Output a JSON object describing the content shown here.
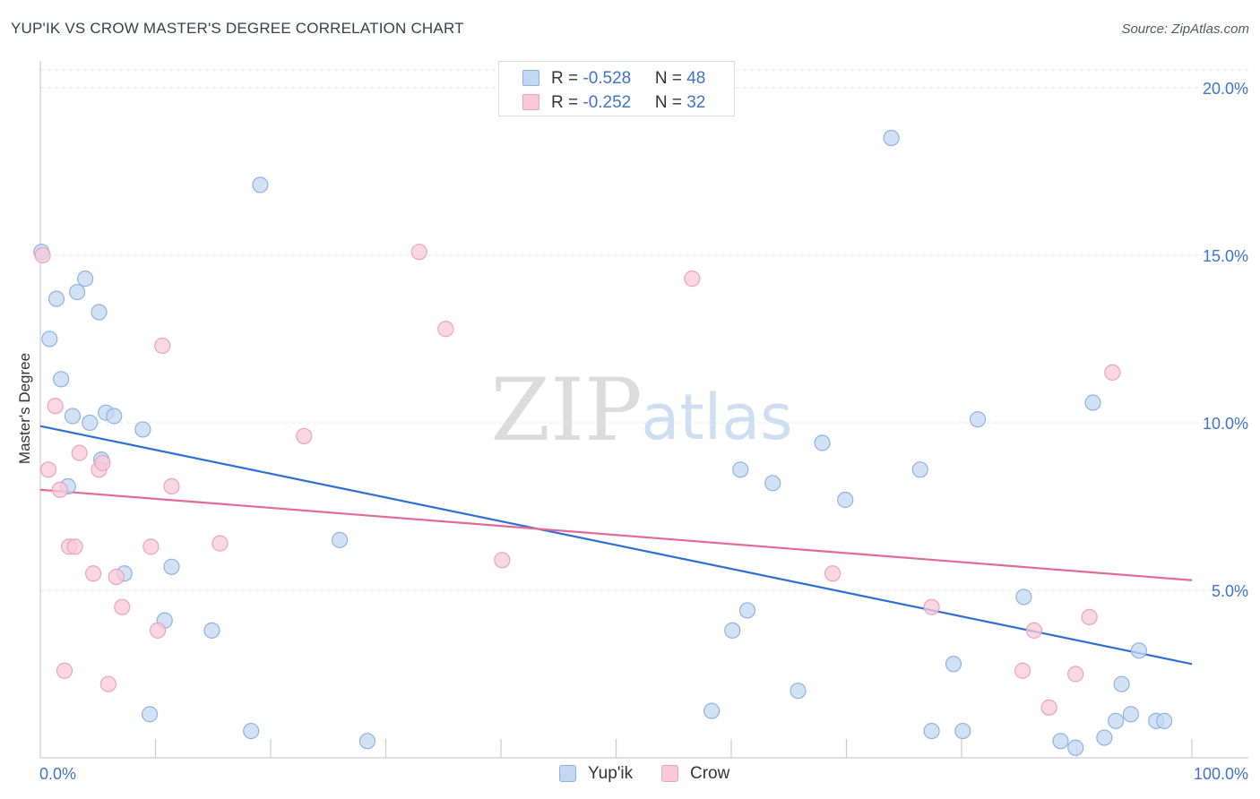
{
  "title": "YUP'IK VS CROW MASTER'S DEGREE CORRELATION CHART",
  "source": "Source: ZipAtlas.com",
  "watermark": {
    "zip": "ZIP",
    "atlas": "atlas"
  },
  "legend": {
    "rows": [
      {
        "r_label": "R = ",
        "r_value": "-0.528",
        "n_label": "N = ",
        "n_value": "48"
      },
      {
        "r_label": "R = ",
        "r_value": "-0.252",
        "n_label": "N = ",
        "n_value": "32"
      }
    ]
  },
  "bottom_legend": {
    "series1": "Yup'ik",
    "series2": "Crow"
  },
  "colors": {
    "blue_fill": "#c4d7f2",
    "blue_stroke": "#8fb2e3",
    "blue_line": "#2f6fd3",
    "pink_fill": "#f8c9d8",
    "pink_stroke": "#eba3bb",
    "pink_line": "#e36a97",
    "tick_label": "#3f74c8"
  },
  "chart_data": {
    "type": "scatter",
    "title": "YUP'IK VS CROW MASTER'S DEGREE CORRELATION CHART",
    "xlabel": "",
    "ylabel": "Master's Degree",
    "xlim": [
      0,
      100
    ],
    "ylim": [
      0,
      20.8
    ],
    "x_tick_labels": [
      "0.0%",
      "100.0%"
    ],
    "y_ticks": [
      5,
      10,
      15,
      20
    ],
    "y_tick_labels": [
      "5.0%",
      "10.0%",
      "15.0%",
      "20.0%"
    ],
    "grid": true,
    "legend_position": "top-center",
    "series": [
      {
        "name": "Yup'ik",
        "r": -0.528,
        "n": 48,
        "trend": {
          "x": [
            0,
            100
          ],
          "y": [
            9.9,
            2.8
          ]
        },
        "points": [
          {
            "x": 0.1,
            "y": 15.1
          },
          {
            "x": 0.8,
            "y": 12.5
          },
          {
            "x": 1.4,
            "y": 13.7
          },
          {
            "x": 1.8,
            "y": 11.3
          },
          {
            "x": 2.4,
            "y": 8.1
          },
          {
            "x": 2.8,
            "y": 10.2
          },
          {
            "x": 3.2,
            "y": 13.9
          },
          {
            "x": 3.9,
            "y": 14.3
          },
          {
            "x": 4.3,
            "y": 10.0
          },
          {
            "x": 5.1,
            "y": 13.3
          },
          {
            "x": 5.3,
            "y": 8.9
          },
          {
            "x": 5.7,
            "y": 10.3
          },
          {
            "x": 6.4,
            "y": 10.2
          },
          {
            "x": 7.3,
            "y": 5.5
          },
          {
            "x": 8.9,
            "y": 9.8
          },
          {
            "x": 9.5,
            "y": 1.3
          },
          {
            "x": 10.8,
            "y": 4.1
          },
          {
            "x": 11.4,
            "y": 5.7
          },
          {
            "x": 19.1,
            "y": 17.1
          },
          {
            "x": 14.9,
            "y": 3.8
          },
          {
            "x": 18.3,
            "y": 0.8
          },
          {
            "x": 26.0,
            "y": 6.5
          },
          {
            "x": 28.4,
            "y": 0.5
          },
          {
            "x": 73.9,
            "y": 18.5
          },
          {
            "x": 60.8,
            "y": 8.6
          },
          {
            "x": 63.6,
            "y": 8.2
          },
          {
            "x": 67.9,
            "y": 9.4
          },
          {
            "x": 69.9,
            "y": 7.7
          },
          {
            "x": 76.4,
            "y": 8.6
          },
          {
            "x": 81.4,
            "y": 10.1
          },
          {
            "x": 91.4,
            "y": 10.6
          },
          {
            "x": 61.4,
            "y": 4.4
          },
          {
            "x": 60.1,
            "y": 3.8
          },
          {
            "x": 58.3,
            "y": 1.4
          },
          {
            "x": 65.8,
            "y": 2.0
          },
          {
            "x": 79.3,
            "y": 2.8
          },
          {
            "x": 77.4,
            "y": 0.8
          },
          {
            "x": 80.1,
            "y": 0.8
          },
          {
            "x": 85.4,
            "y": 4.8
          },
          {
            "x": 88.6,
            "y": 0.5
          },
          {
            "x": 89.9,
            "y": 0.3
          },
          {
            "x": 93.9,
            "y": 2.2
          },
          {
            "x": 95.4,
            "y": 3.2
          },
          {
            "x": 93.4,
            "y": 1.1
          },
          {
            "x": 94.7,
            "y": 1.3
          },
          {
            "x": 96.9,
            "y": 1.1
          },
          {
            "x": 97.6,
            "y": 1.1
          },
          {
            "x": 92.4,
            "y": 0.6
          }
        ]
      },
      {
        "name": "Crow",
        "r": -0.252,
        "n": 32,
        "trend": {
          "x": [
            0,
            100
          ],
          "y": [
            8.0,
            5.3
          ]
        },
        "points": [
          {
            "x": 0.2,
            "y": 15.0
          },
          {
            "x": 0.7,
            "y": 8.6
          },
          {
            "x": 1.3,
            "y": 10.5
          },
          {
            "x": 1.7,
            "y": 8.0
          },
          {
            "x": 2.1,
            "y": 2.6
          },
          {
            "x": 2.5,
            "y": 6.3
          },
          {
            "x": 3.0,
            "y": 6.3
          },
          {
            "x": 3.4,
            "y": 9.1
          },
          {
            "x": 4.6,
            "y": 5.5
          },
          {
            "x": 5.1,
            "y": 8.6
          },
          {
            "x": 5.4,
            "y": 8.8
          },
          {
            "x": 5.9,
            "y": 2.2
          },
          {
            "x": 6.6,
            "y": 5.4
          },
          {
            "x": 7.1,
            "y": 4.5
          },
          {
            "x": 9.6,
            "y": 6.3
          },
          {
            "x": 10.2,
            "y": 3.8
          },
          {
            "x": 10.6,
            "y": 12.3
          },
          {
            "x": 11.4,
            "y": 8.1
          },
          {
            "x": 15.6,
            "y": 6.4
          },
          {
            "x": 22.9,
            "y": 9.6
          },
          {
            "x": 32.9,
            "y": 15.1
          },
          {
            "x": 35.2,
            "y": 12.8
          },
          {
            "x": 40.1,
            "y": 5.9
          },
          {
            "x": 56.6,
            "y": 14.3
          },
          {
            "x": 68.8,
            "y": 5.5
          },
          {
            "x": 77.4,
            "y": 4.5
          },
          {
            "x": 85.3,
            "y": 2.6
          },
          {
            "x": 86.3,
            "y": 3.8
          },
          {
            "x": 87.6,
            "y": 1.5
          },
          {
            "x": 89.9,
            "y": 2.5
          },
          {
            "x": 91.1,
            "y": 4.2
          },
          {
            "x": 93.1,
            "y": 11.5
          }
        ]
      }
    ]
  }
}
